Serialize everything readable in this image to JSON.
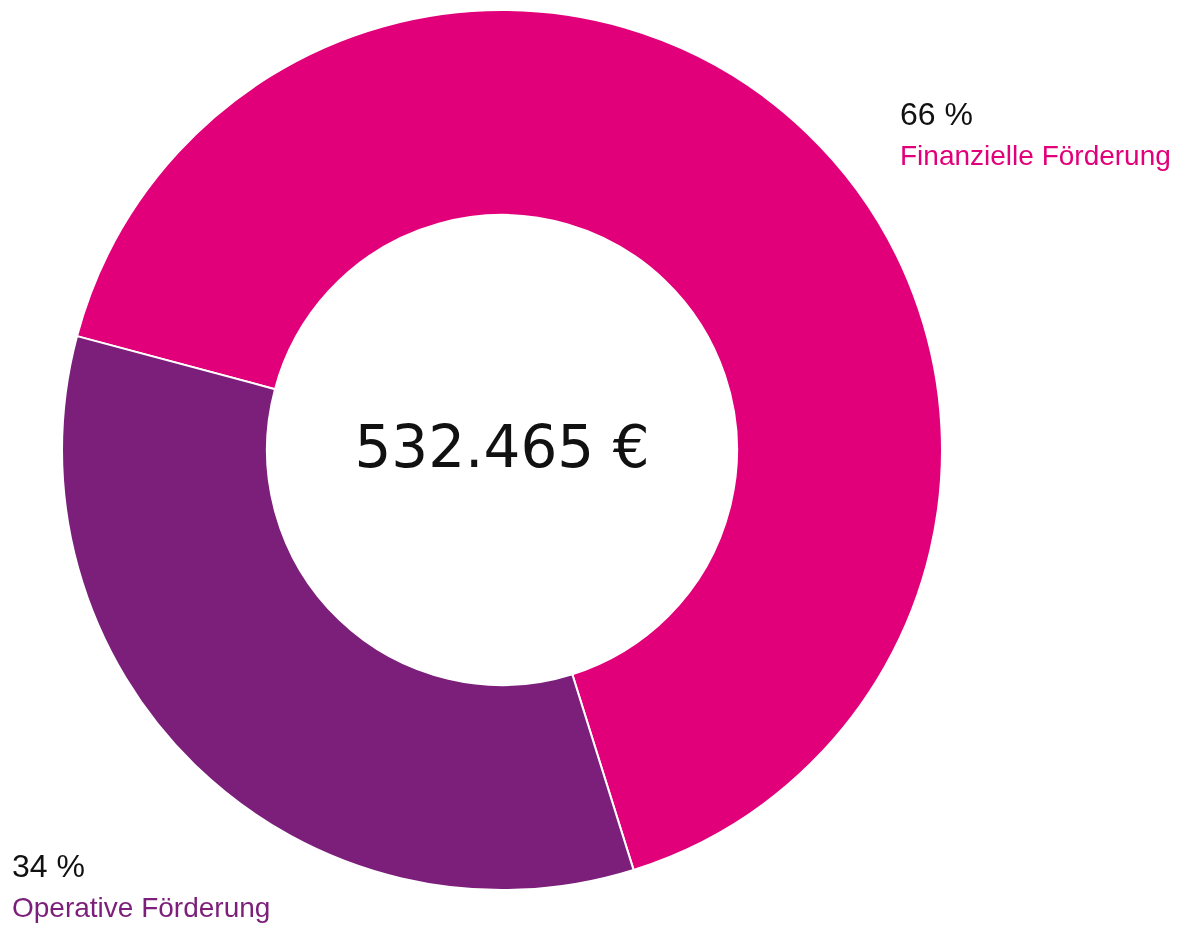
{
  "chart_data": {
    "type": "donut",
    "categories": [
      "Finanzielle Förderung",
      "Operative Förderung"
    ],
    "values": [
      66,
      34
    ],
    "colors": [
      "#e2007a",
      "#7b1f7a"
    ],
    "value_labels": [
      "66 %",
      "34 %"
    ],
    "annotations": [
      "532.465 €"
    ]
  }
}
